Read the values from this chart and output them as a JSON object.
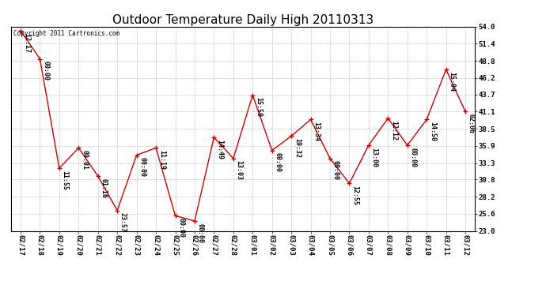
{
  "title": "Outdoor Temperature Daily High 20110313",
  "copyright_text": "Copyright 2011 Cartronics.com",
  "x_labels": [
    "02/17",
    "02/18",
    "02/19",
    "02/20",
    "02/21",
    "02/22",
    "02/23",
    "02/24",
    "02/25",
    "02/26",
    "02/27",
    "02/28",
    "03/01",
    "03/02",
    "03/03",
    "03/04",
    "03/05",
    "03/06",
    "03/07",
    "03/08",
    "03/09",
    "03/10",
    "03/11",
    "03/12"
  ],
  "y_values": [
    53.4,
    49.1,
    32.5,
    35.6,
    31.3,
    26.1,
    34.5,
    35.6,
    25.3,
    24.5,
    37.2,
    34.0,
    43.6,
    35.2,
    37.4,
    39.9,
    34.0,
    30.2,
    36.0,
    40.1,
    36.0,
    39.9,
    47.5,
    41.1
  ],
  "time_labels": [
    "12:17",
    "00:00",
    "11:55",
    "09:01",
    "01:16",
    "23:57",
    "00:00",
    "11:19",
    "00:00",
    "00:00",
    "14:49",
    "13:03",
    "15:50",
    "00:00",
    "19:32",
    "13:34",
    "00:00",
    "12:55",
    "13:00",
    "12:12",
    "00:00",
    "14:50",
    "15:04",
    "02:06"
  ],
  "ylim_min": 23.0,
  "ylim_max": 54.0,
  "yticks": [
    23.0,
    25.6,
    28.2,
    30.8,
    33.3,
    35.9,
    38.5,
    41.1,
    43.7,
    46.2,
    48.8,
    51.4,
    54.0
  ],
  "line_color": "#cc0000",
  "marker_color": "#cc0000",
  "bg_color": "#ffffff",
  "grid_color": "#c0c0c0",
  "title_fontsize": 11,
  "tick_fontsize": 6.5,
  "annotation_fontsize": 6.0,
  "fig_width": 6.9,
  "fig_height": 3.75,
  "dpi": 100
}
